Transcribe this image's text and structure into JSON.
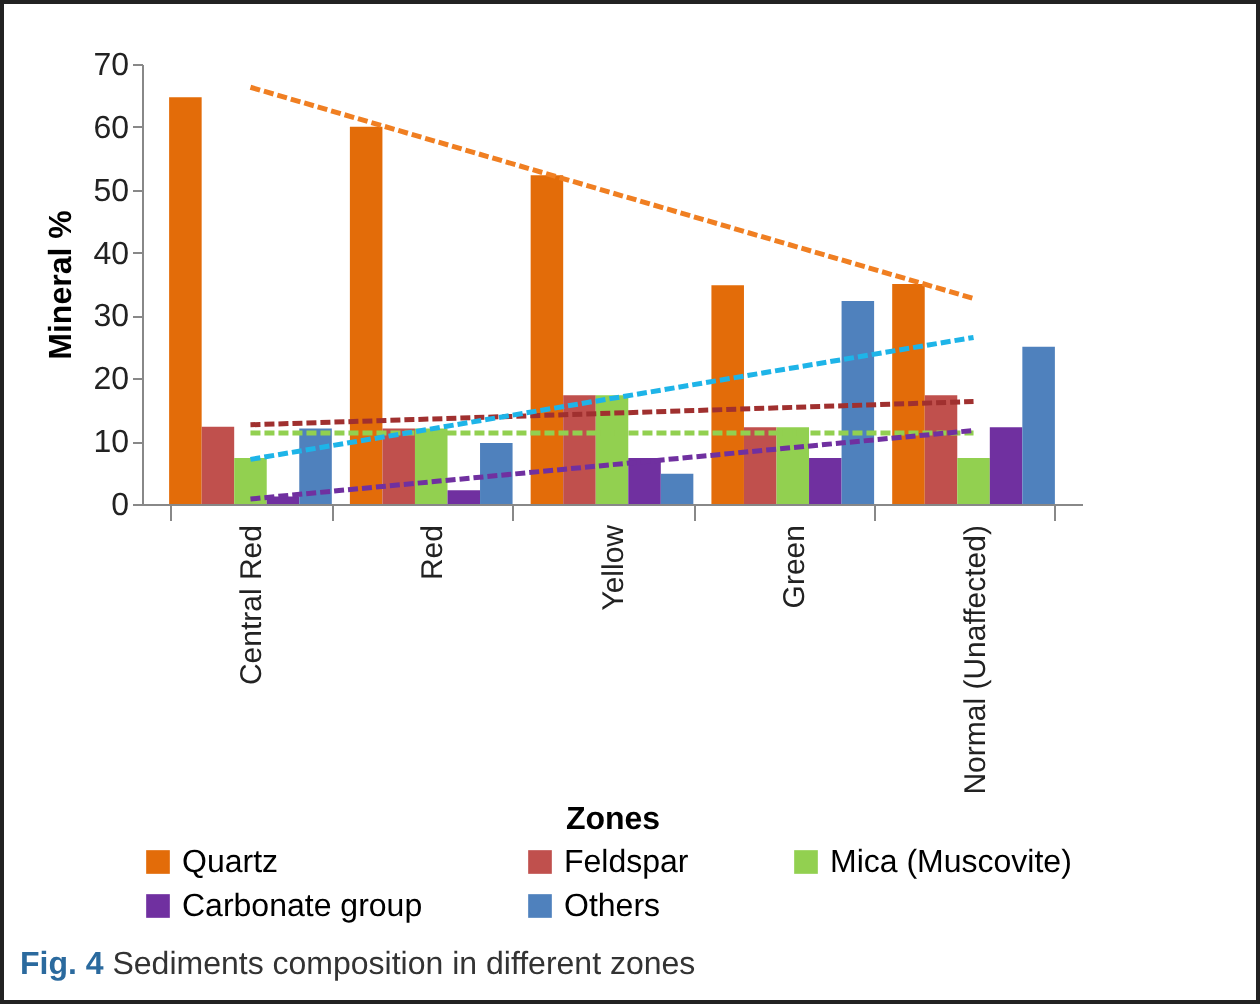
{
  "chart_data": {
    "type": "bar",
    "xlabel": "Zones",
    "ylabel": "Mineral %",
    "categories": [
      "Central Red",
      "Red",
      "Yellow",
      "Green",
      "Normal (Unaffected)"
    ],
    "ylim": [
      0,
      70
    ],
    "yticks": [
      0,
      10,
      20,
      30,
      40,
      50,
      60,
      70
    ],
    "grid": false,
    "legend": "bottom",
    "annotations": [
      "Fig. 4 Sediments composition in different zones"
    ],
    "series": [
      {
        "name": "Quartz",
        "color": "#e36c09",
        "values": [
          64.7,
          60,
          52.3,
          34.8,
          35
        ]
      },
      {
        "name": "Feldspar",
        "color": "#c0504d",
        "values": [
          12.3,
          12,
          17.3,
          12.2,
          17.3
        ]
      },
      {
        "name": "Mica (Muscovite)",
        "color": "#92d050",
        "values": [
          7.3,
          12,
          17.3,
          12.2,
          7.3
        ]
      },
      {
        "name": "Carbonate group",
        "color": "#7030a0",
        "values": [
          1.2,
          2.2,
          7.3,
          7.3,
          12.2
        ]
      },
      {
        "name": "Others",
        "color": "#4f81bd",
        "values": [
          12,
          9.7,
          4.8,
          32.3,
          25
        ]
      },
      {
        "type": "line",
        "line_style": "dashed",
        "color": "#f07f22",
        "x": [
          "Central Red",
          "Normal (Unaffected)"
        ],
        "values": [
          66.3,
          32.7
        ]
      },
      {
        "type": "line",
        "line_style": "dashed",
        "color": "#a0302f",
        "x": [
          "Central Red",
          "Normal (Unaffected)"
        ],
        "values": [
          12.6,
          16.3
        ]
      },
      {
        "type": "line",
        "line_style": "dashed",
        "color": "#92d050",
        "x": [
          "Central Red",
          "Normal (Unaffected)"
        ],
        "values": [
          11.3,
          11.3
        ]
      },
      {
        "type": "line",
        "line_style": "dashed",
        "color": "#7030a0",
        "x": [
          "Central Red",
          "Normal (Unaffected)"
        ],
        "values": [
          0.8,
          11.7
        ]
      },
      {
        "type": "line",
        "line_style": "dashed",
        "color": "#1eb4e8",
        "x": [
          "Central Red",
          "Normal (Unaffected)"
        ],
        "values": [
          7.1,
          26.5
        ]
      }
    ]
  }
}
